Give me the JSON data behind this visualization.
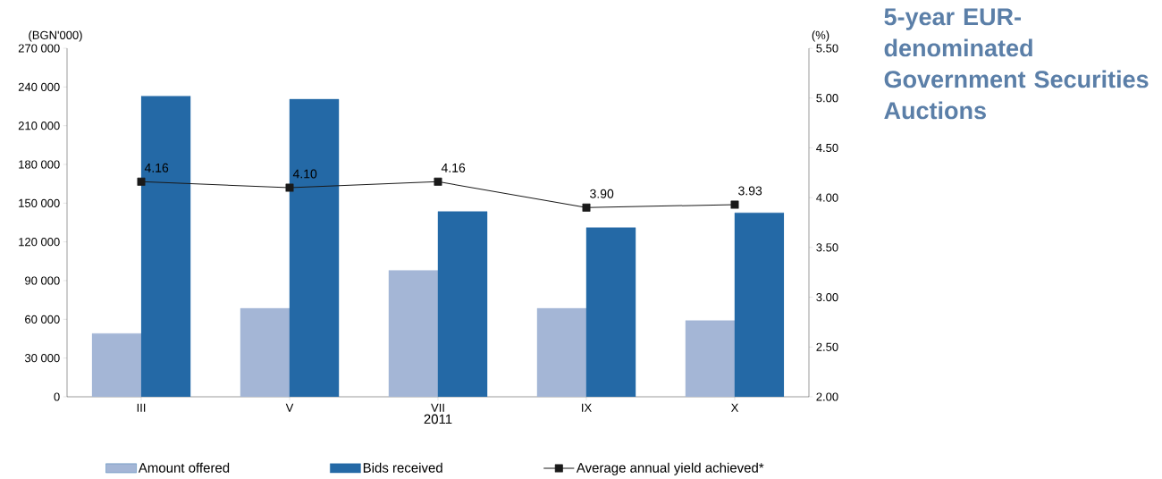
{
  "chart_data": {
    "type": "bar",
    "title": "5-year EUR-denominated Government Securities Auctions",
    "xlabel": "2011",
    "ylabel": "(BGN'000)",
    "y2label": "(%)",
    "categories": [
      "III",
      "V",
      "VII",
      "IX",
      "X"
    ],
    "series": [
      {
        "name": "Amount offered",
        "color": "#a4b6d6",
        "values": [
          49000,
          68500,
          98000,
          68500,
          59000
        ]
      },
      {
        "name": "Bids received",
        "color": "#2469a6",
        "values": [
          233000,
          230500,
          143500,
          131000,
          142500
        ]
      },
      {
        "name": "Average annual yield achieved*",
        "type": "line",
        "axis": "y2",
        "color": "#1a1a1a",
        "marker": "square",
        "line_style": "solid",
        "values": [
          4.16,
          4.1,
          4.16,
          3.9,
          3.93
        ],
        "value_labels": [
          "4.16",
          "4.10",
          "4.16",
          "3.90",
          "3.93"
        ]
      }
    ],
    "ylim": [
      0,
      270000
    ],
    "yticks": [
      0,
      {
        "value": 30000,
        "label": "30 000"
      },
      {
        "value": 60000,
        "label": "60 000"
      },
      {
        "value": 90000,
        "label": "90 000"
      },
      {
        "value": 120000,
        "label": "120 000"
      },
      {
        "value": 150000,
        "label": "150 000"
      },
      {
        "value": 180000,
        "label": "180 000"
      },
      {
        "value": 210000,
        "label": "210 000"
      },
      {
        "value": 240000,
        "label": "240 000"
      },
      {
        "value": 270000,
        "label": "270 000"
      }
    ],
    "y2lim": [
      2.0,
      5.5
    ],
    "y2ticks": [
      {
        "value": 2.0,
        "label": "2.00"
      },
      {
        "value": 2.5,
        "label": "2.50"
      },
      {
        "value": 3.0,
        "label": "3.00"
      },
      {
        "value": 3.5,
        "label": "3.50"
      },
      {
        "value": 4.0,
        "label": "4.00"
      },
      {
        "value": 4.5,
        "label": "4.50"
      },
      {
        "value": 5.0,
        "label": "5.00"
      },
      {
        "value": 5.5,
        "label": "5.50"
      }
    ],
    "grid": false,
    "legend": "bottom"
  }
}
